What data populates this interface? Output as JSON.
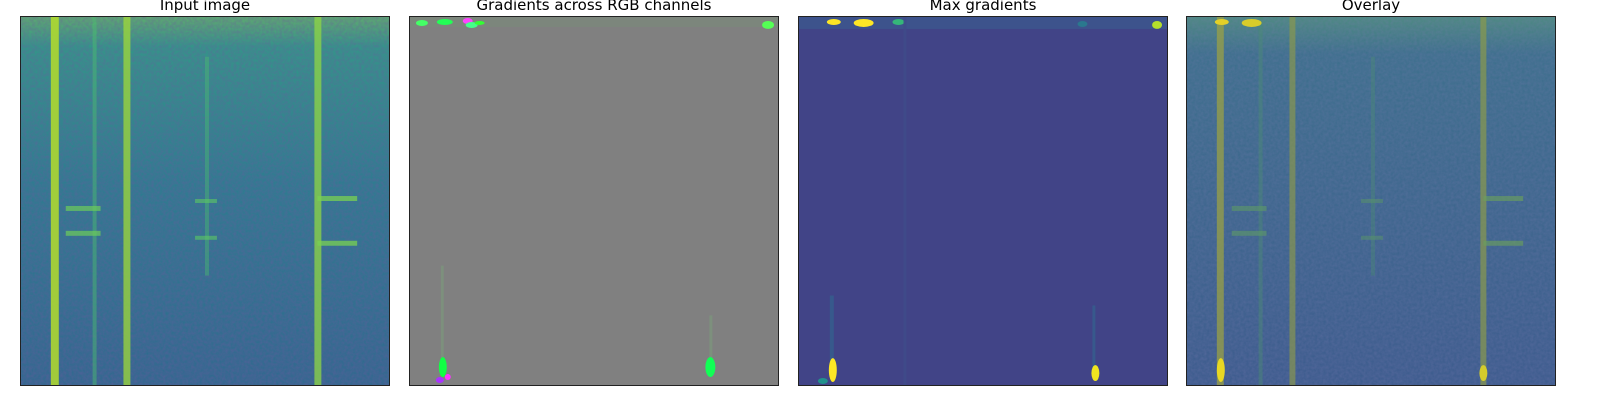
{
  "figure": {
    "panels": [
      {
        "id": "input",
        "title": "Input image"
      },
      {
        "id": "gradients",
        "title": "Gradients across RGB channels"
      },
      {
        "id": "max",
        "title": "Max gradients"
      },
      {
        "id": "overlay",
        "title": "Overlay"
      }
    ]
  },
  "colors": {
    "viridis_dark": "#2f6b8e",
    "viridis_teal": "#21918c",
    "viridis_yellow": "#d8e219",
    "gray": "#808080",
    "max_background": "#414487",
    "bright_yellow": "#fde725",
    "green": "#00ff4c"
  }
}
